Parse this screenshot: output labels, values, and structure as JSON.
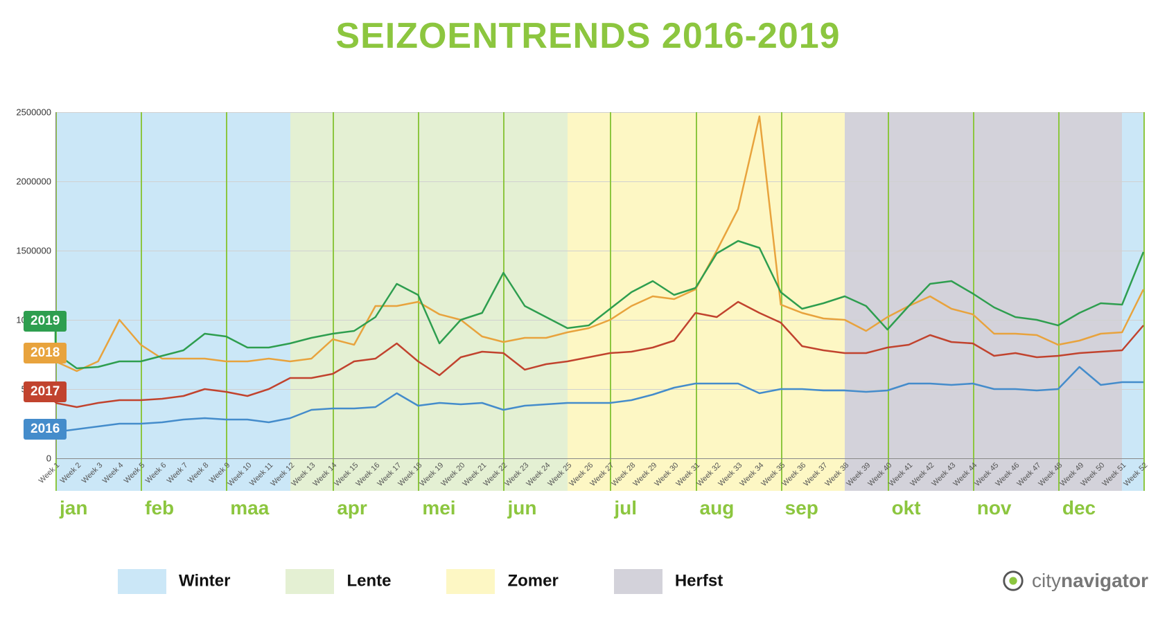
{
  "title": "SEIZOENTRENDS 2016-2019",
  "title_color": "#8cc63f",
  "brand": "citynavigator",
  "brand_color": "#777777",
  "brand_bold_color": "#2e7d32",
  "chart": {
    "type": "line",
    "background_color": "#ffffff",
    "grid_color": "#d0d0d0",
    "month_line_color": "#8cc63f",
    "month_label_color": "#8cc63f",
    "axis_color": "#888888",
    "xtick_color": "#555555",
    "ylim": [
      0,
      2500000
    ],
    "ytick_step": 500000,
    "yticks": [
      0,
      500000,
      1000000,
      1500000,
      2000000,
      2500000
    ],
    "weeks": [
      "Week 1",
      "Week 2",
      "Week 3",
      "Week 4",
      "Week 5",
      "Week 6",
      "Week 7",
      "Week 8",
      "Week 9",
      "Week 10",
      "Week 11",
      "Week 12",
      "Week 13",
      "Week 14",
      "Week 15",
      "Week 16",
      "Week 17",
      "Week 18",
      "Week 19",
      "Week 20",
      "Week 21",
      "Week 22",
      "Week 23",
      "Week 24",
      "Week 25",
      "Week 26",
      "Week 27",
      "Week 28",
      "Week 29",
      "Week 30",
      "Week 31",
      "Week 32",
      "Week 33",
      "Week 34",
      "Week 35",
      "Week 36",
      "Week 37",
      "Week 38",
      "Week 39",
      "Week 40",
      "Week 41",
      "Week 42",
      "Week 43",
      "Week 44",
      "Week 45",
      "Week 46",
      "Week 47",
      "Week 48",
      "Week 49",
      "Week 50",
      "Week 51",
      "Week 52"
    ],
    "months": [
      {
        "label": "jan",
        "week": 1
      },
      {
        "label": "feb",
        "week": 5
      },
      {
        "label": "maa",
        "week": 9
      },
      {
        "label": "apr",
        "week": 14
      },
      {
        "label": "mei",
        "week": 18
      },
      {
        "label": "jun",
        "week": 22
      },
      {
        "label": "jul",
        "week": 27
      },
      {
        "label": "aug",
        "week": 31
      },
      {
        "label": "sep",
        "week": 35
      },
      {
        "label": "okt",
        "week": 40
      },
      {
        "label": "nov",
        "week": 44
      },
      {
        "label": "dec",
        "week": 48
      }
    ],
    "seasons": [
      {
        "name": "Winter",
        "color": "#cbe7f7",
        "from_week": 1,
        "to_week": 12
      },
      {
        "name": "Lente",
        "color": "#e4f0d3",
        "from_week": 12,
        "to_week": 25
      },
      {
        "name": "Zomer",
        "color": "#fdf7c4",
        "from_week": 25,
        "to_week": 38
      },
      {
        "name": "Herfst",
        "color": "#d3d2da",
        "from_week": 38,
        "to_week": 51
      },
      {
        "name": "Winter",
        "color": "#cbe7f7",
        "from_week": 51,
        "to_week": 52
      }
    ],
    "legend_seasons": [
      {
        "name": "Winter",
        "color": "#cbe7f7"
      },
      {
        "name": "Lente",
        "color": "#e4f0d3"
      },
      {
        "name": "Zomer",
        "color": "#fdf7c4"
      },
      {
        "name": "Herfst",
        "color": "#d3d2da"
      }
    ],
    "series": [
      {
        "name": "2016",
        "color": "#448ccb",
        "badge_y": 210000,
        "line_width": 2.5,
        "values": [
          190000,
          210000,
          230000,
          250000,
          250000,
          260000,
          280000,
          290000,
          280000,
          280000,
          260000,
          290000,
          350000,
          360000,
          360000,
          370000,
          470000,
          380000,
          400000,
          390000,
          400000,
          350000,
          380000,
          390000,
          400000,
          400000,
          400000,
          420000,
          460000,
          510000,
          540000,
          540000,
          540000,
          470000,
          500000,
          500000,
          490000,
          490000,
          480000,
          490000,
          540000,
          540000,
          530000,
          540000,
          500000,
          500000,
          490000,
          500000,
          660000,
          530000,
          550000,
          550000
        ]
      },
      {
        "name": "2017",
        "color": "#c1432e",
        "badge_y": 480000,
        "line_width": 2.5,
        "values": [
          400000,
          370000,
          400000,
          420000,
          420000,
          430000,
          450000,
          500000,
          480000,
          450000,
          500000,
          580000,
          580000,
          610000,
          700000,
          720000,
          830000,
          700000,
          600000,
          730000,
          770000,
          760000,
          640000,
          680000,
          700000,
          730000,
          760000,
          770000,
          800000,
          850000,
          1050000,
          1020000,
          1130000,
          1050000,
          980000,
          810000,
          780000,
          760000,
          760000,
          800000,
          820000,
          890000,
          840000,
          830000,
          740000,
          760000,
          730000,
          740000,
          760000,
          770000,
          780000,
          960000
        ]
      },
      {
        "name": "2018",
        "color": "#e8a33d",
        "badge_y": 760000,
        "line_width": 2.5,
        "values": [
          700000,
          630000,
          700000,
          1000000,
          820000,
          720000,
          720000,
          720000,
          700000,
          700000,
          720000,
          700000,
          720000,
          860000,
          820000,
          1100000,
          1100000,
          1130000,
          1040000,
          1000000,
          880000,
          840000,
          870000,
          870000,
          910000,
          940000,
          1000000,
          1100000,
          1170000,
          1150000,
          1220000,
          1500000,
          1800000,
          2470000,
          1110000,
          1050000,
          1010000,
          1000000,
          920000,
          1020000,
          1100000,
          1170000,
          1080000,
          1040000,
          900000,
          900000,
          890000,
          820000,
          850000,
          900000,
          910000,
          1220000
        ]
      },
      {
        "name": "2019",
        "color": "#2e9e4f",
        "badge_y": 990000,
        "line_width": 2.5,
        "values": [
          760000,
          650000,
          660000,
          700000,
          700000,
          740000,
          780000,
          900000,
          880000,
          800000,
          800000,
          830000,
          870000,
          900000,
          920000,
          1020000,
          1260000,
          1180000,
          830000,
          1000000,
          1050000,
          1340000,
          1100000,
          1020000,
          940000,
          960000,
          1080000,
          1200000,
          1280000,
          1180000,
          1230000,
          1480000,
          1570000,
          1520000,
          1200000,
          1080000,
          1120000,
          1170000,
          1100000,
          930000,
          1100000,
          1260000,
          1280000,
          1190000,
          1090000,
          1020000,
          1000000,
          960000,
          1050000,
          1120000,
          1110000,
          1490000
        ]
      }
    ]
  }
}
